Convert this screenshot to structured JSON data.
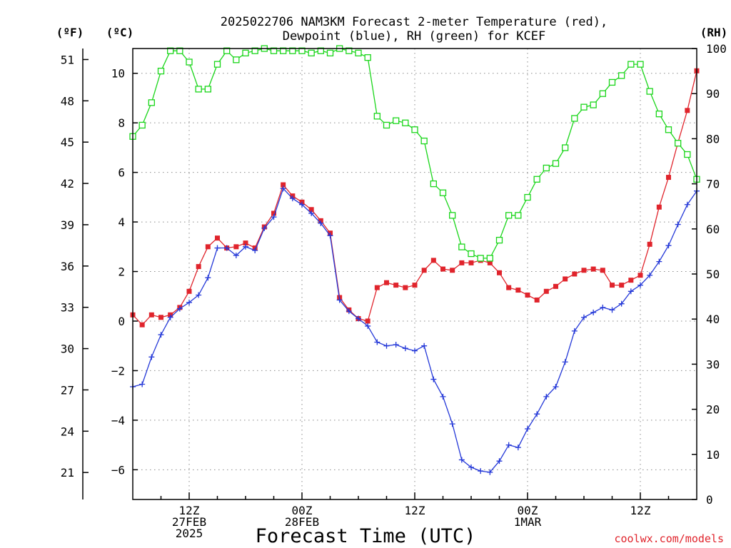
{
  "chart_data": {
    "type": "line",
    "title_line1": "2025022706 NAM3KM Forecast 2-meter Temperature (red),",
    "title_line2": "Dewpoint (blue), RH (green) for KCEF",
    "xlabel": "Forecast Time (UTC)",
    "unit_f": "(ºF)",
    "unit_c": "(ºC)",
    "unit_rh": "(RH)",
    "watermark": "coolwx.com/models",
    "x_range_hours": [
      0,
      60
    ],
    "x_ticks": [
      {
        "hour": 6,
        "lines": [
          "12Z",
          "27FEB",
          "2025"
        ]
      },
      {
        "hour": 18,
        "lines": [
          "00Z",
          "28FEB"
        ]
      },
      {
        "hour": 30,
        "lines": [
          "12Z"
        ]
      },
      {
        "hour": 42,
        "lines": [
          "00Z",
          "1MAR"
        ]
      },
      {
        "hour": 54,
        "lines": [
          "12Z"
        ]
      }
    ],
    "y_celsius": {
      "range": [
        -7.2,
        11.0
      ],
      "ticks": [
        "10",
        "8",
        "6",
        "4",
        "2",
        "0",
        "−2",
        "−4",
        "−6"
      ],
      "tick_values": [
        10,
        8,
        6,
        4,
        2,
        0,
        -2,
        -4,
        -6
      ]
    },
    "y_fahrenheit": {
      "ticks": [
        "51",
        "48",
        "45",
        "42",
        "39",
        "36",
        "33",
        "30",
        "27",
        "24",
        "21"
      ],
      "tick_values": [
        51,
        48,
        45,
        42,
        39,
        36,
        33,
        30,
        27,
        24,
        21
      ]
    },
    "y_rh": {
      "range": [
        0,
        100
      ],
      "ticks": [
        "100",
        "90",
        "80",
        "70",
        "60",
        "50",
        "40",
        "30",
        "20",
        "10",
        "0"
      ],
      "tick_values": [
        100,
        90,
        80,
        70,
        60,
        50,
        40,
        30,
        20,
        10,
        0
      ]
    },
    "grid": true,
    "series": [
      {
        "name": "2-meter Temperature (red)",
        "axis": "celsius",
        "color": "#e0242c",
        "marker": "filled-square",
        "x": [
          0,
          1,
          2,
          3,
          4,
          5,
          6,
          7,
          8,
          9,
          10,
          11,
          12,
          13,
          14,
          15,
          16,
          17,
          18,
          19,
          20,
          21,
          22,
          23,
          24,
          25,
          26,
          27,
          28,
          29,
          30,
          31,
          32,
          33,
          34,
          35,
          36,
          37,
          38,
          39,
          40,
          41,
          42,
          43,
          44,
          45,
          46,
          47,
          48,
          49,
          50,
          51,
          52,
          53,
          54,
          55,
          56,
          57,
          58,
          59,
          60
        ],
        "values": [
          0.25,
          -0.15,
          0.25,
          0.15,
          0.25,
          0.55,
          1.2,
          2.2,
          3.0,
          3.35,
          2.95,
          3.0,
          3.15,
          2.95,
          3.8,
          4.35,
          5.5,
          5.05,
          4.8,
          4.5,
          4.05,
          3.55,
          0.95,
          0.45,
          0.1,
          0.0,
          1.35,
          1.55,
          1.45,
          1.35,
          1.45,
          2.05,
          2.45,
          2.1,
          2.05,
          2.35,
          2.35,
          2.45,
          2.35,
          1.95,
          1.35,
          1.25,
          1.05,
          0.85,
          1.2,
          1.4,
          1.7,
          1.9,
          2.05,
          2.1,
          2.05,
          1.45,
          1.45,
          1.65,
          1.85,
          3.1,
          4.6,
          5.8,
          7.2,
          8.5,
          10.1
        ]
      },
      {
        "name": "Dewpoint (blue)",
        "axis": "celsius",
        "color": "#2438d8",
        "marker": "plus",
        "x": [
          0,
          1,
          2,
          3,
          4,
          5,
          6,
          7,
          8,
          9,
          10,
          11,
          12,
          13,
          14,
          15,
          16,
          17,
          18,
          19,
          20,
          21,
          22,
          23,
          24,
          25,
          26,
          27,
          28,
          29,
          30,
          31,
          32,
          33,
          34,
          35,
          36,
          37,
          38,
          39,
          40,
          41,
          42,
          43,
          44,
          45,
          46,
          47,
          48,
          49,
          50,
          51,
          52,
          53,
          54,
          55,
          56,
          57,
          58,
          59,
          60
        ],
        "values": [
          -2.65,
          -2.55,
          -1.45,
          -0.55,
          0.15,
          0.5,
          0.75,
          1.05,
          1.75,
          2.95,
          2.95,
          2.65,
          3.0,
          2.85,
          3.75,
          4.2,
          5.35,
          4.95,
          4.7,
          4.35,
          3.95,
          3.45,
          0.85,
          0.4,
          0.1,
          -0.2,
          -0.85,
          -1.0,
          -0.95,
          -1.1,
          -1.2,
          -1.0,
          -2.35,
          -3.05,
          -4.15,
          -5.6,
          -5.9,
          -6.05,
          -6.1,
          -5.65,
          -5.0,
          -5.1,
          -4.35,
          -3.75,
          -3.05,
          -2.65,
          -1.65,
          -0.4,
          0.15,
          0.35,
          0.55,
          0.45,
          0.7,
          1.2,
          1.45,
          1.85,
          2.4,
          3.05,
          3.9,
          4.7,
          5.25
        ]
      },
      {
        "name": "RH (green)",
        "axis": "rh",
        "color": "#1ad61a",
        "marker": "open-square",
        "x": [
          0,
          1,
          2,
          3,
          4,
          5,
          6,
          7,
          8,
          9,
          10,
          11,
          12,
          13,
          14,
          15,
          16,
          17,
          18,
          19,
          20,
          21,
          22,
          23,
          24,
          25,
          26,
          27,
          28,
          29,
          30,
          31,
          32,
          33,
          34,
          35,
          36,
          37,
          38,
          39,
          40,
          41,
          42,
          43,
          44,
          45,
          46,
          47,
          48,
          49,
          50,
          51,
          52,
          53,
          54,
          55,
          56,
          57,
          58,
          59,
          60
        ],
        "values": [
          80.5,
          83,
          88,
          95,
          99.5,
          99.5,
          97,
          91,
          91,
          96.5,
          99.5,
          97.5,
          99,
          99.5,
          100,
          99.5,
          99.5,
          99.5,
          99.5,
          99,
          99.5,
          99,
          100,
          99.5,
          99,
          98,
          85,
          83,
          84,
          83.5,
          82,
          79.5,
          70,
          68,
          63,
          56,
          54.5,
          53.5,
          53.5,
          57.5,
          63,
          63,
          67,
          71,
          73.5,
          74.5,
          78,
          84.5,
          87,
          87.5,
          90,
          92.5,
          94,
          96.5,
          96.5,
          90.5,
          85.5,
          82,
          79,
          76.5,
          71
        ]
      }
    ]
  }
}
